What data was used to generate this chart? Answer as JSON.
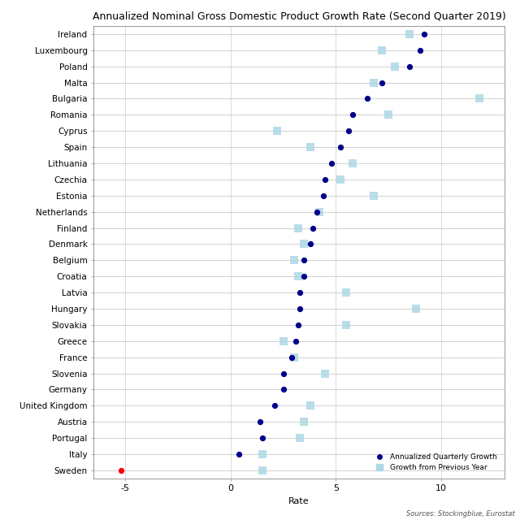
{
  "title": "Annualized Nominal Gross Domestic Product Growth Rate (Second Quarter 2019)",
  "xlabel": "Rate",
  "source_text": "Sources: Stockingblue, Eurostat",
  "xlim": [
    -6.5,
    13.0
  ],
  "xticks": [
    -5,
    0,
    5,
    10
  ],
  "countries": [
    "Ireland",
    "Luxembourg",
    "Poland",
    "Malta",
    "Bulgaria",
    "Romania",
    "Cyprus",
    "Spain",
    "Lithuania",
    "Czechia",
    "Estonia",
    "Netherlands",
    "Finland",
    "Denmark",
    "Belgium",
    "Croatia",
    "Latvia",
    "Hungary",
    "Slovakia",
    "Greece",
    "France",
    "Slovenia",
    "Germany",
    "United Kingdom",
    "Austria",
    "Portugal",
    "Italy",
    "Sweden"
  ],
  "annualized_quarterly": [
    9.2,
    9.0,
    8.5,
    7.2,
    6.5,
    5.8,
    5.6,
    5.2,
    4.8,
    4.5,
    4.4,
    4.1,
    3.9,
    3.8,
    3.5,
    3.5,
    3.3,
    3.3,
    3.2,
    3.1,
    2.9,
    2.5,
    2.5,
    2.1,
    1.4,
    1.5,
    0.4,
    -5.2
  ],
  "prev_year": [
    8.5,
    7.2,
    7.8,
    6.8,
    11.8,
    7.5,
    2.2,
    3.8,
    5.8,
    5.2,
    6.8,
    4.2,
    3.2,
    3.5,
    3.0,
    3.2,
    5.5,
    8.8,
    5.5,
    2.5,
    3.0,
    4.5,
    null,
    3.8,
    3.5,
    3.3,
    1.5,
    1.5
  ],
  "dot_color": "#00008B",
  "square_color": "#ADD8E6",
  "sweden_dot_color": "#FF0000",
  "bg_color": "#FFFFFF",
  "grid_color": "#CCCCCC",
  "title_fontsize": 9.0,
  "axis_label_fontsize": 8,
  "tick_label_fontsize": 8,
  "country_label_fontsize": 7.5
}
